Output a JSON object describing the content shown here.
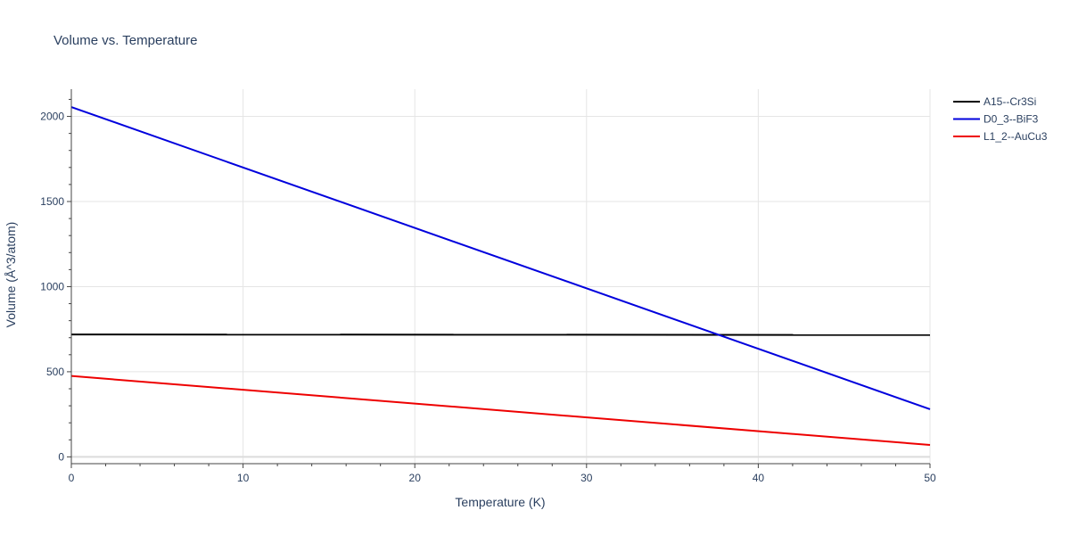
{
  "chart_data": {
    "type": "line",
    "title": "Volume vs. Temperature",
    "xlabel": "Temperature (K)",
    "ylabel": "Volume (Å^3/atom)",
    "xlim": [
      0,
      50
    ],
    "ylim": [
      -40,
      2160
    ],
    "xticks": [
      0,
      10,
      20,
      30,
      40,
      50
    ],
    "yticks": [
      0,
      500,
      1000,
      1500,
      2000
    ],
    "grid": true,
    "legend_position": "top-right",
    "series": [
      {
        "name": "A15--Cr3Si",
        "color": "#000000",
        "x": [
          0,
          50
        ],
        "y": [
          719,
          716
        ]
      },
      {
        "name": "D0_3--BiF3",
        "color": "#0000dd",
        "x": [
          0,
          50
        ],
        "y": [
          2055,
          280
        ]
      },
      {
        "name": "L1_2--AuCu3",
        "color": "#ee0000",
        "x": [
          0,
          50
        ],
        "y": [
          475,
          70
        ]
      }
    ]
  }
}
